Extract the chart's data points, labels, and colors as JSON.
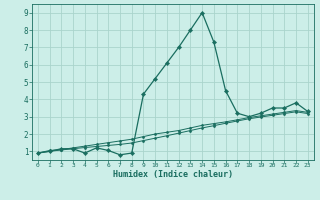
{
  "xlabel": "Humidex (Indice chaleur)",
  "bg_color": "#cceee8",
  "grid_color": "#aad4cc",
  "line_color": "#1a6e60",
  "xlim": [
    -0.5,
    23.5
  ],
  "ylim": [
    0.5,
    9.5
  ],
  "xticks": [
    0,
    1,
    2,
    3,
    4,
    5,
    6,
    7,
    8,
    9,
    10,
    11,
    12,
    13,
    14,
    15,
    16,
    17,
    18,
    19,
    20,
    21,
    22,
    23
  ],
  "yticks": [
    1,
    2,
    3,
    4,
    5,
    6,
    7,
    8,
    9
  ],
  "series1_x": [
    0,
    1,
    2,
    3,
    4,
    5,
    6,
    7,
    8,
    9,
    10,
    11,
    12,
    13,
    14,
    15,
    16,
    17,
    18,
    19,
    20,
    21,
    22,
    23
  ],
  "series1_y": [
    0.9,
    1.0,
    1.15,
    1.15,
    0.9,
    1.2,
    1.05,
    0.8,
    0.9,
    4.3,
    5.2,
    6.1,
    7.0,
    8.0,
    9.0,
    7.3,
    4.5,
    3.2,
    3.0,
    3.2,
    3.5,
    3.5,
    3.8,
    3.3
  ],
  "series2_x": [
    0,
    1,
    2,
    3,
    4,
    5,
    6,
    7,
    8,
    9,
    10,
    11,
    12,
    13,
    14,
    15,
    16,
    17,
    18,
    19,
    20,
    21,
    22,
    23
  ],
  "series2_y": [
    0.9,
    1.05,
    1.1,
    1.2,
    1.3,
    1.4,
    1.5,
    1.6,
    1.7,
    1.85,
    2.0,
    2.1,
    2.2,
    2.35,
    2.5,
    2.6,
    2.7,
    2.82,
    2.95,
    3.05,
    3.15,
    3.25,
    3.35,
    3.25
  ],
  "series3_x": [
    0,
    1,
    2,
    3,
    4,
    5,
    6,
    7,
    8,
    9,
    10,
    11,
    12,
    13,
    14,
    15,
    16,
    17,
    18,
    19,
    20,
    21,
    22,
    23
  ],
  "series3_y": [
    0.9,
    1.0,
    1.08,
    1.15,
    1.22,
    1.28,
    1.34,
    1.4,
    1.48,
    1.62,
    1.76,
    1.9,
    2.05,
    2.2,
    2.35,
    2.48,
    2.62,
    2.75,
    2.88,
    2.98,
    3.08,
    3.18,
    3.28,
    3.18
  ]
}
